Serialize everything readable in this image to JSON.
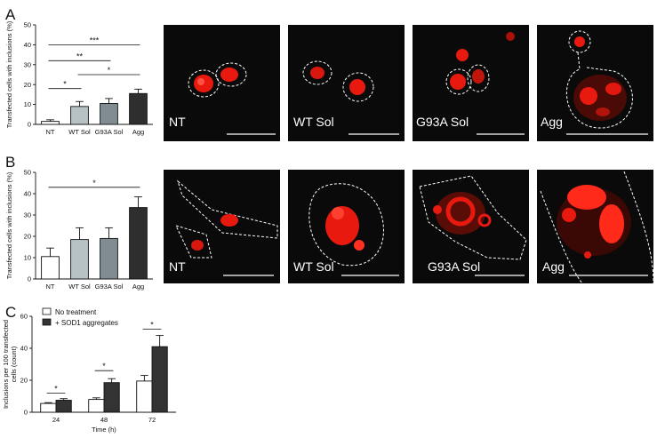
{
  "panels": [
    {
      "letter": "A"
    },
    {
      "letter": "B"
    },
    {
      "letter": "C"
    }
  ],
  "colors": {
    "NT": "#ffffff",
    "WT Sol": "#b7c2c5",
    "G93A Sol": "#808c92",
    "Agg": "#2e2e2e",
    "no_treatment": "#ffffff",
    "aggregates": "#333333",
    "micro_bg": "#0a0a0a",
    "micro_signal": "#ff2a1a"
  },
  "chart_data": [
    {
      "id": "A",
      "type": "bar",
      "ylabel": "Transfected cells with inclusions (%)",
      "xlabel": "",
      "ylim": [
        0,
        50
      ],
      "yticks": [
        "0",
        "10",
        "20",
        "30",
        "40",
        "50"
      ],
      "categories": [
        "NT",
        "WT Sol",
        "G93A Sol",
        "Agg"
      ],
      "values": [
        1.5,
        9,
        10.5,
        15.5
      ],
      "errors": [
        0.8,
        2.5,
        2.5,
        2.2
      ],
      "significance": [
        {
          "from": 0,
          "to": 3,
          "label": "***",
          "y": 40
        },
        {
          "from": 0,
          "to": 2,
          "label": "**",
          "y": 32
        },
        {
          "from": 1,
          "to": 3,
          "label": "*",
          "y": 25
        },
        {
          "from": 0,
          "to": 1,
          "label": "*",
          "y": 18
        }
      ]
    },
    {
      "id": "B",
      "type": "bar",
      "ylabel": "Transfected cells with inclusions (%)",
      "xlabel": "",
      "ylim": [
        0,
        50
      ],
      "yticks": [
        "0",
        "10",
        "20",
        "30",
        "40",
        "50"
      ],
      "categories": [
        "NT",
        "WT Sol",
        "G93A Sol",
        "Agg"
      ],
      "values": [
        10.5,
        18.5,
        19,
        33.5
      ],
      "errors": [
        4,
        5.5,
        5,
        5
      ],
      "significance": [
        {
          "from": 0,
          "to": 3,
          "label": "*",
          "y": 43
        }
      ]
    },
    {
      "id": "C",
      "type": "bar",
      "ylabel": "Inclusions per 100 transfected cells (count)",
      "xlabel": "Time (h)",
      "ylim": [
        0,
        60
      ],
      "yticks": [
        "0",
        "20",
        "40",
        "60"
      ],
      "categories": [
        "24",
        "48",
        "72"
      ],
      "series": [
        {
          "name": "No treatment",
          "values": [
            5.5,
            8,
            19.5
          ],
          "errors": [
            0.5,
            1,
            3.5
          ]
        },
        {
          "name": "+ SOD1 aggregates",
          "values": [
            7.5,
            18.5,
            41
          ],
          "errors": [
            1,
            2.5,
            7
          ]
        }
      ],
      "significance": [
        {
          "group": 0,
          "label": "*",
          "y": 12
        },
        {
          "group": 1,
          "label": "*",
          "y": 26
        },
        {
          "group": 2,
          "label": "*",
          "y": 52
        }
      ]
    }
  ],
  "micrographs": {
    "A": [
      "NT",
      "WT Sol",
      "G93A Sol",
      "Agg"
    ],
    "B": [
      "NT",
      "WT Sol",
      "G93A Sol",
      "Agg"
    ]
  }
}
